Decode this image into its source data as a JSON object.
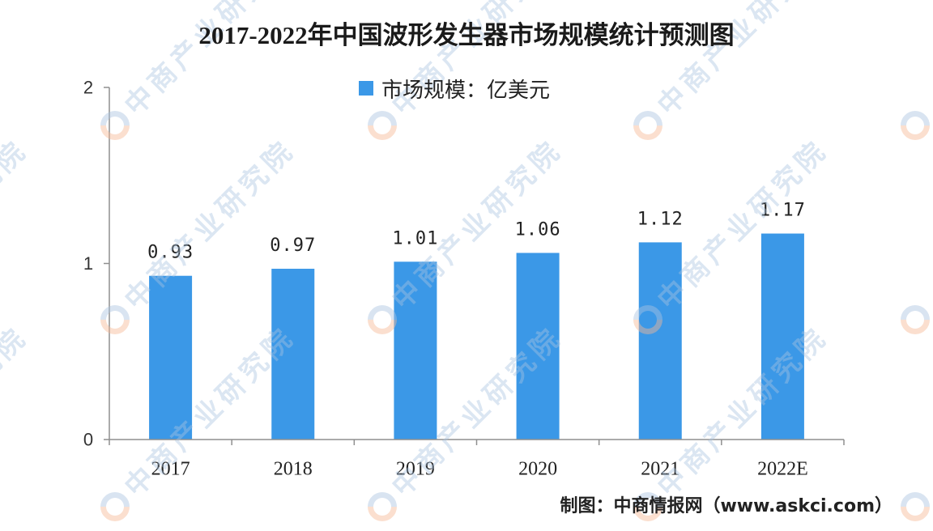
{
  "colors": {
    "bar": "#3b98e7",
    "axis": "#8f8f8f"
  },
  "watermark": {
    "text": "中商产业研究院"
  },
  "source": "制图：中商情报网（www.askci.com）",
  "chart_data": {
    "type": "bar",
    "title": "2017-2022年中国波形发生器市场规模统计预测图",
    "categories": [
      "2017",
      "2018",
      "2019",
      "2020",
      "2021",
      "2022E"
    ],
    "series": [
      {
        "name": "市场规模：亿美元",
        "values": [
          0.93,
          0.97,
          1.01,
          1.06,
          1.12,
          1.17
        ]
      }
    ],
    "ylim": [
      0,
      2
    ],
    "yticks": [
      0,
      1,
      2
    ],
    "grid": false,
    "legend_position": "top-center"
  }
}
